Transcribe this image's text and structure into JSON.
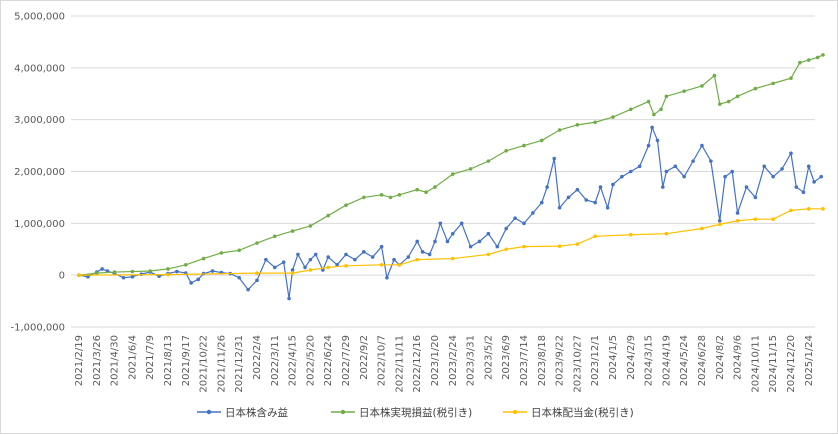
{
  "chart_data": {
    "type": "line",
    "title": "",
    "xlabel": "",
    "ylabel": "",
    "ylim": [
      -1000000,
      5000000
    ],
    "grid": true,
    "legend_position": "bottom",
    "y_ticks": [
      {
        "value": 5000000,
        "label": "5,000,000"
      },
      {
        "value": 4000000,
        "label": "4,000,000"
      },
      {
        "value": 3000000,
        "label": "3,000,000"
      },
      {
        "value": 2000000,
        "label": "2,000,000"
      },
      {
        "value": 1000000,
        "label": "1,000,000"
      },
      {
        "value": 0,
        "label": "0"
      },
      {
        "value": -1000000,
        "label": "-1,000,000"
      }
    ],
    "negative_tick_color": "#ff0000",
    "x_tick_labels": [
      "2021/2/19",
      "2021/3/26",
      "2021/4/30",
      "2021/6/4",
      "2021/7/9",
      "2021/8/13",
      "2021/9/17",
      "2021/10/22",
      "2021/11/26",
      "2021/12/31",
      "2022/2/4",
      "2022/3/11",
      "2022/4/15",
      "2022/5/20",
      "2022/6/24",
      "2022/7/29",
      "2022/9/2",
      "2022/10/7",
      "2022/11/11",
      "2022/12/16",
      "2023/1/20",
      "2023/2/24",
      "2023/3/31",
      "2023/5/2",
      "2023/6/9",
      "2023/7/14",
      "2023/8/18",
      "2023/9/22",
      "2023/10/27",
      "2023/12/1",
      "2024/1/5",
      "2024/2/9",
      "2024/3/15",
      "2024/4/19",
      "2024/5/24",
      "2024/6/28",
      "2024/8/2",
      "2024/9/6",
      "2024/10/11",
      "2024/11/15",
      "2024/12/20",
      "2025/1/24"
    ],
    "series": [
      {
        "name": "日本株含み益",
        "color": "#4472c4",
        "points": [
          [
            0,
            0
          ],
          [
            0.5,
            -30000
          ],
          [
            1,
            60000
          ],
          [
            1.3,
            120000
          ],
          [
            1.6,
            80000
          ],
          [
            2,
            30000
          ],
          [
            2.5,
            -50000
          ],
          [
            3,
            -30000
          ],
          [
            3.5,
            20000
          ],
          [
            4,
            60000
          ],
          [
            4.5,
            -20000
          ],
          [
            5,
            30000
          ],
          [
            5.5,
            70000
          ],
          [
            6,
            40000
          ],
          [
            6.3,
            -150000
          ],
          [
            6.7,
            -80000
          ],
          [
            7,
            30000
          ],
          [
            7.5,
            80000
          ],
          [
            8,
            50000
          ],
          [
            8.5,
            30000
          ],
          [
            9,
            -50000
          ],
          [
            9.5,
            -280000
          ],
          [
            10,
            -100000
          ],
          [
            10.5,
            300000
          ],
          [
            11,
            150000
          ],
          [
            11.5,
            250000
          ],
          [
            11.8,
            -450000
          ],
          [
            12,
            100000
          ],
          [
            12.3,
            400000
          ],
          [
            12.7,
            150000
          ],
          [
            13,
            300000
          ],
          [
            13.3,
            400000
          ],
          [
            13.7,
            100000
          ],
          [
            14,
            350000
          ],
          [
            14.5,
            200000
          ],
          [
            15,
            400000
          ],
          [
            15.5,
            300000
          ],
          [
            16,
            450000
          ],
          [
            16.5,
            350000
          ],
          [
            17,
            550000
          ],
          [
            17.3,
            -50000
          ],
          [
            17.7,
            300000
          ],
          [
            18,
            200000
          ],
          [
            18.5,
            350000
          ],
          [
            19,
            650000
          ],
          [
            19.3,
            450000
          ],
          [
            19.7,
            400000
          ],
          [
            20,
            650000
          ],
          [
            20.3,
            1000000
          ],
          [
            20.7,
            650000
          ],
          [
            21,
            800000
          ],
          [
            21.5,
            1000000
          ],
          [
            22,
            550000
          ],
          [
            22.5,
            650000
          ],
          [
            23,
            800000
          ],
          [
            23.5,
            550000
          ],
          [
            24,
            900000
          ],
          [
            24.5,
            1100000
          ],
          [
            25,
            1000000
          ],
          [
            25.5,
            1200000
          ],
          [
            26,
            1400000
          ],
          [
            26.3,
            1700000
          ],
          [
            26.7,
            2250000
          ],
          [
            27,
            1300000
          ],
          [
            27.5,
            1500000
          ],
          [
            28,
            1650000
          ],
          [
            28.5,
            1450000
          ],
          [
            29,
            1400000
          ],
          [
            29.3,
            1700000
          ],
          [
            29.7,
            1300000
          ],
          [
            30,
            1750000
          ],
          [
            30.5,
            1900000
          ],
          [
            31,
            2000000
          ],
          [
            31.5,
            2100000
          ],
          [
            32,
            2500000
          ],
          [
            32.2,
            2850000
          ],
          [
            32.5,
            2600000
          ],
          [
            32.8,
            1700000
          ],
          [
            33,
            2000000
          ],
          [
            33.5,
            2100000
          ],
          [
            34,
            1900000
          ],
          [
            34.5,
            2200000
          ],
          [
            35,
            2500000
          ],
          [
            35.5,
            2200000
          ],
          [
            36,
            1050000
          ],
          [
            36.3,
            1900000
          ],
          [
            36.7,
            2000000
          ],
          [
            37,
            1200000
          ],
          [
            37.5,
            1700000
          ],
          [
            38,
            1500000
          ],
          [
            38.5,
            2100000
          ],
          [
            39,
            1900000
          ],
          [
            39.5,
            2050000
          ],
          [
            40,
            2350000
          ],
          [
            40.3,
            1700000
          ],
          [
            40.7,
            1600000
          ],
          [
            41,
            2100000
          ],
          [
            41.3,
            1800000
          ],
          [
            41.7,
            1900000
          ]
        ]
      },
      {
        "name": "日本株実現損益(税引き)",
        "color": "#70ad47",
        "points": [
          [
            0,
            0
          ],
          [
            1,
            40000
          ],
          [
            2,
            60000
          ],
          [
            3,
            70000
          ],
          [
            4,
            80000
          ],
          [
            5,
            120000
          ],
          [
            6,
            200000
          ],
          [
            7,
            320000
          ],
          [
            8,
            430000
          ],
          [
            9,
            480000
          ],
          [
            10,
            620000
          ],
          [
            11,
            750000
          ],
          [
            12,
            850000
          ],
          [
            13,
            950000
          ],
          [
            14,
            1150000
          ],
          [
            15,
            1350000
          ],
          [
            16,
            1500000
          ],
          [
            17,
            1550000
          ],
          [
            17.5,
            1500000
          ],
          [
            18,
            1550000
          ],
          [
            19,
            1650000
          ],
          [
            19.5,
            1600000
          ],
          [
            20,
            1700000
          ],
          [
            21,
            1950000
          ],
          [
            22,
            2050000
          ],
          [
            23,
            2200000
          ],
          [
            24,
            2400000
          ],
          [
            25,
            2500000
          ],
          [
            26,
            2600000
          ],
          [
            27,
            2800000
          ],
          [
            28,
            2900000
          ],
          [
            29,
            2950000
          ],
          [
            30,
            3050000
          ],
          [
            31,
            3200000
          ],
          [
            32,
            3350000
          ],
          [
            32.3,
            3100000
          ],
          [
            32.7,
            3200000
          ],
          [
            33,
            3450000
          ],
          [
            34,
            3550000
          ],
          [
            35,
            3650000
          ],
          [
            35.7,
            3850000
          ],
          [
            36,
            3300000
          ],
          [
            36.5,
            3350000
          ],
          [
            37,
            3450000
          ],
          [
            38,
            3600000
          ],
          [
            39,
            3700000
          ],
          [
            40,
            3800000
          ],
          [
            40.5,
            4100000
          ],
          [
            41,
            4150000
          ],
          [
            41.5,
            4200000
          ],
          [
            41.8,
            4250000
          ]
        ]
      },
      {
        "name": "日本株配当金(税引き)",
        "color": "#ffc000",
        "points": [
          [
            0,
            0
          ],
          [
            5,
            10000
          ],
          [
            10,
            40000
          ],
          [
            12,
            40000
          ],
          [
            13,
            100000
          ],
          [
            14,
            150000
          ],
          [
            15,
            180000
          ],
          [
            17,
            200000
          ],
          [
            18,
            200000
          ],
          [
            19,
            300000
          ],
          [
            21,
            320000
          ],
          [
            23,
            400000
          ],
          [
            24,
            500000
          ],
          [
            25,
            550000
          ],
          [
            27,
            560000
          ],
          [
            28,
            600000
          ],
          [
            29,
            750000
          ],
          [
            31,
            780000
          ],
          [
            33,
            800000
          ],
          [
            35,
            900000
          ],
          [
            36,
            980000
          ],
          [
            37,
            1050000
          ],
          [
            38,
            1080000
          ],
          [
            39,
            1080000
          ],
          [
            40,
            1250000
          ],
          [
            41,
            1280000
          ],
          [
            41.8,
            1280000
          ]
        ]
      }
    ]
  }
}
